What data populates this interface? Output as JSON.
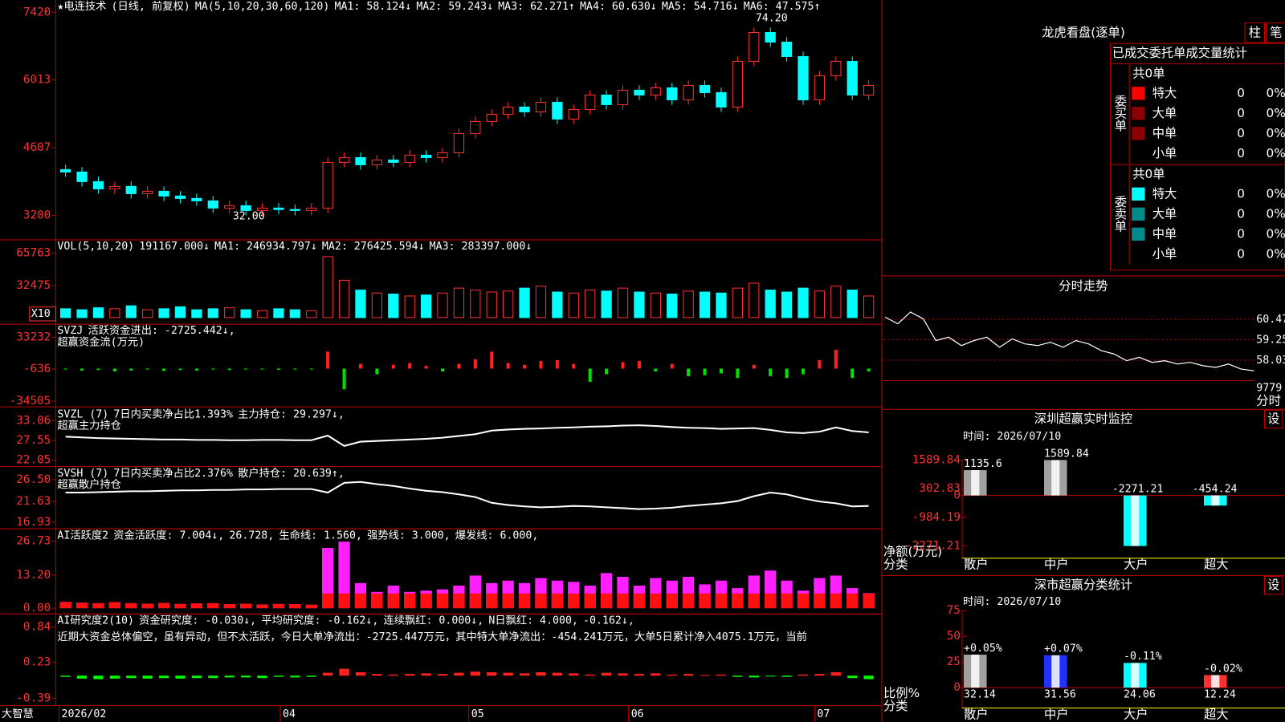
{
  "header": {
    "items": [
      {
        "text": "★电连技术",
        "color": "#ffffff"
      },
      {
        "text": "(日线, 前复权)",
        "color": "#ff3030"
      },
      {
        "text": "MA(5,10,20,30,60,120)",
        "color": "#ffffff"
      },
      {
        "text": "MA1: 58.124↓",
        "color": "#ffffff"
      },
      {
        "text": "MA2: 59.243↓",
        "color": "#ffff00"
      },
      {
        "text": "MA3: 62.271↑",
        "color": "#ff40ff"
      },
      {
        "text": "MA4: 60.630↓",
        "color": "#00ff00"
      },
      {
        "text": "MA5: 54.716↓",
        "color": "#ffffff"
      },
      {
        "text": "MA6: 47.575↑",
        "color": "#3060ff"
      }
    ]
  },
  "main": {
    "yticks": [
      3200,
      4607,
      6013,
      7420
    ],
    "candles": [
      [
        4150,
        4100
      ],
      [
        4100,
        3900
      ],
      [
        3900,
        3750
      ],
      [
        3750,
        3800
      ],
      [
        3800,
        3650
      ],
      [
        3650,
        3700
      ],
      [
        3700,
        3600
      ],
      [
        3600,
        3550
      ],
      [
        3550,
        3500
      ],
      [
        3500,
        3350
      ],
      [
        3350,
        3400
      ],
      [
        3400,
        3300
      ],
      [
        3300,
        3350
      ],
      [
        3350,
        3320
      ],
      [
        3320,
        3300
      ],
      [
        3300,
        3350
      ],
      [
        3350,
        4300
      ],
      [
        4300,
        4400
      ],
      [
        4400,
        4250
      ],
      [
        4250,
        4350
      ],
      [
        4350,
        4300
      ],
      [
        4300,
        4450
      ],
      [
        4450,
        4400
      ],
      [
        4400,
        4500
      ],
      [
        4500,
        4900
      ],
      [
        4900,
        5150
      ],
      [
        5150,
        5300
      ],
      [
        5300,
        5450
      ],
      [
        5450,
        5350
      ],
      [
        5350,
        5550
      ],
      [
        5550,
        5200
      ],
      [
        5200,
        5400
      ],
      [
        5400,
        5700
      ],
      [
        5700,
        5500
      ],
      [
        5500,
        5800
      ],
      [
        5800,
        5700
      ],
      [
        5700,
        5850
      ],
      [
        5850,
        5600
      ],
      [
        5600,
        5900
      ],
      [
        5900,
        5750
      ],
      [
        5750,
        5450
      ],
      [
        5450,
        6400
      ],
      [
        6400,
        7000
      ],
      [
        7000,
        6800
      ],
      [
        6800,
        6500
      ],
      [
        6500,
        5600
      ],
      [
        5600,
        6100
      ],
      [
        6100,
        6400
      ],
      [
        6400,
        5700
      ],
      [
        5700,
        5900
      ]
    ],
    "annotations": [
      "74.20",
      "32.00"
    ]
  },
  "volume": {
    "items": [
      {
        "text": "VOL(5,10,20)",
        "color": "#ffffff"
      },
      {
        "text": "191167.000↓",
        "color": "#ffffff"
      },
      {
        "text": "MA1: 246934.797↓",
        "color": "#ffff00"
      },
      {
        "text": "MA2: 276425.594↓",
        "color": "#ff40ff"
      },
      {
        "text": "MA3: 283397.000↓",
        "color": "#00ff00"
      }
    ],
    "ylim": [
      0,
      65763
    ],
    "yticks": [
      32475,
      65763
    ],
    "unit": "X10",
    "values": [
      9000,
      8000,
      10000,
      9000,
      12000,
      8000,
      9000,
      11000,
      8000,
      9000,
      10000,
      8000,
      7000,
      9000,
      8000,
      7000,
      62000,
      38000,
      28000,
      25000,
      24000,
      22000,
      23000,
      25000,
      30000,
      28000,
      26000,
      27000,
      30000,
      32000,
      26000,
      25000,
      28000,
      27000,
      30000,
      26000,
      25000,
      24000,
      27000,
      26000,
      25000,
      30000,
      35000,
      28000,
      26000,
      30000,
      27000,
      32000,
      28000,
      22000
    ]
  },
  "svzj": {
    "items": [
      {
        "text": "SVZJ",
        "color": "#ffffff"
      },
      {
        "text": "活跃资金进出: -2725.442↓,",
        "color": "#ffffff"
      }
    ],
    "subtitle": "超赢资金流(万元)",
    "yticks": [
      -34505,
      -636,
      33232
    ],
    "values": [
      -1000,
      -2000,
      -1500,
      -3000,
      -2000,
      -1000,
      -2500,
      -1500,
      -2000,
      -1000,
      -1500,
      -1000,
      -800,
      -1200,
      -1000,
      -900,
      18000,
      -22000,
      5000,
      -6000,
      4000,
      6000,
      3000,
      -3000,
      5000,
      10000,
      18000,
      6000,
      4000,
      8000,
      9000,
      5000,
      -14000,
      -6000,
      7000,
      8000,
      -3000,
      5000,
      -8000,
      -7000,
      -5000,
      -10000,
      4000,
      -8000,
      -10000,
      -6000,
      9000,
      20000,
      -10000,
      -3000
    ]
  },
  "svzl": {
    "items": [
      {
        "text": "SVZL (7)",
        "color": "#ffffff"
      },
      {
        "text": "7日内买卖净占比1.393%",
        "color": "#ff3030"
      },
      {
        "text": "主力持仓: 29.297↓,",
        "color": "#ffffff"
      }
    ],
    "subtitle": "超赢主力持仓",
    "yticks": [
      22.05,
      27.55,
      33.06
    ],
    "values": [
      28.6,
      28.4,
      28.2,
      28.1,
      28.0,
      27.9,
      27.8,
      27.8,
      27.7,
      27.7,
      27.6,
      27.6,
      27.7,
      27.7,
      27.6,
      27.6,
      28.9,
      26.0,
      27.2,
      27.4,
      27.6,
      27.8,
      28.0,
      28.3,
      28.8,
      29.3,
      30.3,
      30.6,
      30.8,
      30.9,
      31.1,
      31.2,
      31.4,
      31.5,
      31.7,
      31.8,
      31.6,
      31.3,
      31.1,
      31.0,
      30.8,
      30.9,
      31.0,
      30.5,
      29.8,
      29.6,
      30.0,
      31.2,
      30.2,
      29.8
    ]
  },
  "svsh": {
    "items": [
      {
        "text": "SVSH (7)",
        "color": "#ffffff"
      },
      {
        "text": "7日内买卖净占比2.376%",
        "color": "#00ff00"
      },
      {
        "text": "散户持仓: 20.639↑,",
        "color": "#ffffff"
      }
    ],
    "subtitle": "超赢散户持仓",
    "yticks": [
      {
        "value": 16.93,
        "label": "16.93"
      },
      21.63,
      {
        "value": 26.5,
        "label": "26.50"
      }
    ],
    "values": [
      23.6,
      23.6,
      23.7,
      23.8,
      23.9,
      23.9,
      24.0,
      24.1,
      24.1,
      24.2,
      24.2,
      24.3,
      24.3,
      24.4,
      24.4,
      24.4,
      23.6,
      25.8,
      26.0,
      25.5,
      25.1,
      24.5,
      24.0,
      23.7,
      23.2,
      22.6,
      21.3,
      20.8,
      20.5,
      20.3,
      20.4,
      20.6,
      20.5,
      20.3,
      20.1,
      19.9,
      20.0,
      20.2,
      20.6,
      20.9,
      21.2,
      21.7,
      22.8,
      23.6,
      23.2,
      22.3,
      21.6,
      21.2,
      20.5,
      20.6
    ]
  },
  "ai_active": {
    "items": [
      {
        "text": "AI活跃度2",
        "color": "#ffffff"
      },
      {
        "text": "资金活跃度: 7.004↓,",
        "color": "#ffffff"
      },
      {
        "text": "26.728,",
        "color": "#ffff00"
      },
      {
        "text": "生命线: 1.560,",
        "color": "#ffffff"
      },
      {
        "text": "强势线: 3.000,",
        "color": "#ff3030"
      },
      {
        "text": "爆发线: 6.000,",
        "color": "#ff40ff"
      }
    ],
    "yticks": [
      {
        "value": 0,
        "label": "0.00"
      },
      {
        "value": 13.2,
        "label": "13.20"
      },
      26.73
    ],
    "values": [
      2.5,
      2.2,
      2.0,
      2.4,
      2.0,
      1.8,
      2.1,
      1.7,
      1.9,
      2.0,
      1.6,
      1.8,
      1.5,
      1.7,
      1.6,
      1.4,
      24,
      26.5,
      10,
      6.5,
      9,
      6.5,
      7,
      7.5,
      9,
      13,
      10,
      11,
      10,
      12,
      11,
      10.5,
      9,
      14,
      12.5,
      9,
      12,
      11,
      12.5,
      9.5,
      11,
      8,
      13,
      15,
      11,
      7,
      12,
      13,
      8,
      6
    ]
  },
  "ai_research": {
    "items": [
      {
        "text": "AI研究度2(10)",
        "color": "#ffffff"
      },
      {
        "text": "资金研究度: -0.030↓,",
        "color": "#ffffff"
      },
      {
        "text": "平均研究度: -0.162↓,",
        "color": "#ffff00"
      },
      {
        "text": "连续飘红: 0.000↓,",
        "color": "#ff40ff"
      },
      {
        "text": "N日飘红: 4.000,",
        "color": "#00ff00"
      },
      {
        "text": "-0.162↓,",
        "color": "#3060ff"
      }
    ],
    "note": "近期大资金总体偏空，虽有异动，但不太活跃，今日大单净流出：-2725.447万元，其中特大单净流出：-454.241万元，大单5日累计净入4075.1万元，当前",
    "yticks": [
      -0.39,
      0.23,
      0.84
    ],
    "values": [
      -0.02,
      -0.05,
      -0.06,
      -0.05,
      -0.04,
      -0.05,
      -0.04,
      -0.05,
      -0.04,
      -0.04,
      -0.03,
      -0.03,
      -0.04,
      -0.02,
      -0.03,
      -0.02,
      0.05,
      0.12,
      0.06,
      0.03,
      0.02,
      0.03,
      0.04,
      0.03,
      0.05,
      0.07,
      0.06,
      0.05,
      0.04,
      0.06,
      0.05,
      0.04,
      0.02,
      0.05,
      0.04,
      0.03,
      0.04,
      0.02,
      0.03,
      0.01,
      0.02,
      -0.02,
      -0.03,
      -0.01,
      -0.02,
      0.02,
      0.03,
      0.06,
      -0.04,
      -0.06
    ]
  },
  "dates": [
    "2026/02",
    "04",
    "05",
    "06",
    "07"
  ],
  "brand": "大智慧",
  "longhu": {
    "title": "龙虎看盘(逐单)",
    "buttons": [
      "柱",
      "笔"
    ],
    "stat_title": "已成交委托单成交量统计",
    "groups": [
      {
        "name": "委买单",
        "total": "共0单",
        "rows": [
          {
            "label": "特大",
            "count": 0,
            "pct": "0%",
            "color": "#ff0000"
          },
          {
            "label": "大单",
            "count": 0,
            "pct": "0%",
            "color": "#8b0000"
          },
          {
            "label": "中单",
            "count": 0,
            "pct": "0%",
            "color": "#8b0000"
          },
          {
            "label": "小单",
            "count": 0,
            "pct": "0%",
            "color": null
          }
        ]
      },
      {
        "name": "委卖单",
        "total": "共0单",
        "rows": [
          {
            "label": "特大",
            "count": 0,
            "pct": "0%",
            "color": "#00ffff"
          },
          {
            "label": "大单",
            "count": 0,
            "pct": "0%",
            "color": "#008b8b"
          },
          {
            "label": "中单",
            "count": 0,
            "pct": "0%",
            "color": "#008b8b"
          },
          {
            "label": "小单",
            "count": 0,
            "pct": "0%",
            "color": null
          }
        ]
      }
    ]
  },
  "fenshi": {
    "title": "分时走势",
    "yticks": [
      58.03,
      59.25,
      60.47
    ],
    "volume_label": "9779",
    "unit": "分时",
    "values": [
      60.6,
      60.2,
      60.9,
      60.5,
      59.2,
      59.4,
      58.9,
      59.2,
      59.4,
      58.8,
      59.3,
      59.0,
      58.9,
      59.1,
      58.8,
      59.2,
      59.0,
      58.6,
      58.4,
      58.0,
      58.2,
      57.9,
      58.0,
      57.8,
      57.9,
      57.7,
      57.6,
      57.8,
      57.5,
      57.4
    ]
  },
  "monitor": {
    "title": "深圳超赢实时监控",
    "button": "设",
    "time": "时间: 2026/07/10",
    "yticks": [
      -2271.21,
      -984.19,
      0,
      302.83,
      1589.84
    ],
    "axis_label": "净额(万元)",
    "category_label": "分类",
    "categories": [
      "散户",
      "中户",
      "大户",
      "超大"
    ],
    "values": [
      1135.6,
      1589.84,
      -2271.21,
      -454.24
    ],
    "colors": [
      "#a0a0a0",
      "#a0a0a0",
      "#00ffff",
      "#00ffff"
    ]
  },
  "ratio": {
    "title": "深市超赢分类统计",
    "button": "设",
    "time": "时间: 2026/07/10",
    "yticks": [
      0,
      25,
      50,
      75
    ],
    "axis_label": "比例%",
    "category_label": "分类",
    "categories": [
      "散户",
      "中户",
      "大户",
      "超大"
    ],
    "values": [
      32.14,
      31.56,
      24.06,
      12.24
    ],
    "changes": [
      "+0.05%",
      "+0.07%",
      "-0.11%",
      "-0.02%"
    ],
    "colors": [
      "#a0a0a0",
      "#2030ff",
      "#00ffff",
      "#ff3030"
    ]
  }
}
